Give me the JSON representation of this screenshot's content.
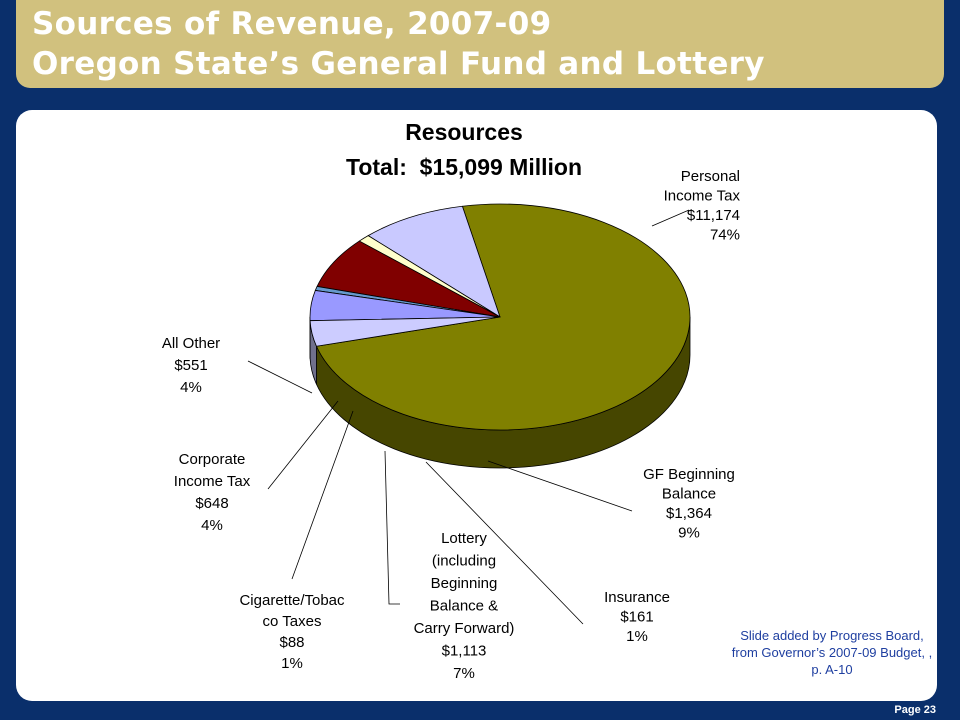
{
  "slide": {
    "title_line1": "Sources of Revenue, 2007-09",
    "title_line2": "Oregon State’s General Fund and Lottery",
    "footnote": "Slide added by Progress Board, from Governor’s 2007-09 Budget, , p. A-10",
    "page_number": "Page 23"
  },
  "chart_data": {
    "type": "pie",
    "title": "Resources",
    "subtitle": "Total:  $15,099 Million",
    "slices": [
      {
        "key": "personal-income-tax",
        "label_lines": [
          "Personal",
          "Income Tax",
          "$11,174",
          "74%"
        ],
        "value": 11174,
        "percent": 74,
        "color": "#808000"
      },
      {
        "key": "gf-beginning-balance",
        "label_lines": [
          "GF Beginning",
          "Balance",
          "$1,364",
          "9%"
        ],
        "value": 1364,
        "percent": 9,
        "color": "#c9c9ff"
      },
      {
        "key": "insurance",
        "label_lines": [
          "Insurance",
          "$161",
          "1%"
        ],
        "value": 161,
        "percent": 1,
        "color": "#ffffcc"
      },
      {
        "key": "lottery",
        "label_lines": [
          "Lottery",
          "(including",
          "Beginning",
          "Balance &",
          "Carry Forward)",
          "$1,113",
          "7%"
        ],
        "value": 1113,
        "percent": 7,
        "color": "#800000"
      },
      {
        "key": "cigarette-tobacco-taxes",
        "label_lines": [
          "Cigarette/Tobac",
          "co Taxes",
          "$88",
          "1%"
        ],
        "value": 88,
        "percent": 1,
        "color": "#6699cc"
      },
      {
        "key": "corporate-income-tax",
        "label_lines": [
          "Corporate",
          "Income Tax",
          "$648",
          "4%"
        ],
        "value": 648,
        "percent": 4,
        "color": "#9999ff"
      },
      {
        "key": "all-other",
        "label_lines": [
          "All Other",
          "$551",
          "4%"
        ],
        "value": 551,
        "percent": 4,
        "color": "#ccccff"
      }
    ]
  }
}
